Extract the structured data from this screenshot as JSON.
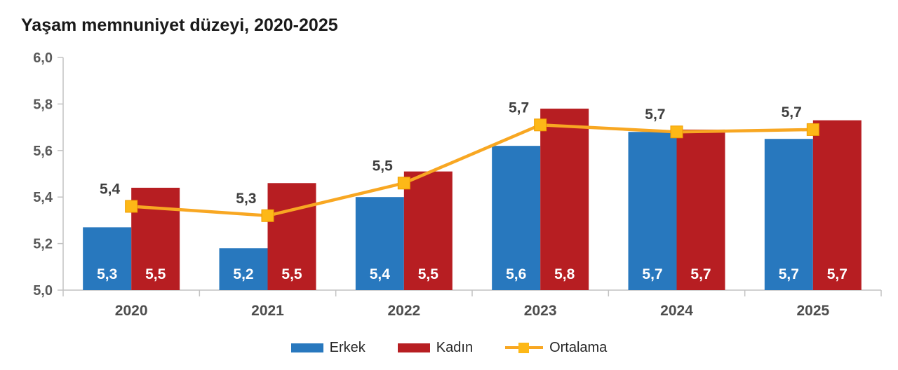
{
  "chart_data": {
    "type": "bar",
    "title": "Yaşam memnuniyet düzeyi, 2020-2025",
    "categories": [
      "2020",
      "2021",
      "2022",
      "2023",
      "2024",
      "2025"
    ],
    "series": [
      {
        "name": "Erkek",
        "type": "bar",
        "color": "#2878BE",
        "values": [
          5.3,
          5.2,
          5.4,
          5.6,
          5.7,
          5.7
        ],
        "value_labels": [
          "5,3",
          "5,2",
          "5,4",
          "5,6",
          "5,7",
          "5,7"
        ],
        "plot_values": [
          5.27,
          5.18,
          5.4,
          5.62,
          5.68,
          5.65
        ]
      },
      {
        "name": "Kadın",
        "type": "bar",
        "color": "#B71E22",
        "values": [
          5.5,
          5.5,
          5.5,
          5.8,
          5.7,
          5.7
        ],
        "value_labels": [
          "5,5",
          "5,5",
          "5,5",
          "5,8",
          "5,7",
          "5,7"
        ],
        "plot_values": [
          5.44,
          5.46,
          5.51,
          5.78,
          5.69,
          5.73
        ]
      },
      {
        "name": "Ortalama",
        "type": "line",
        "color": "#F8A722",
        "marker_color": "#FDB817",
        "marker_stroke": "#EF9C00",
        "values": [
          5.4,
          5.3,
          5.5,
          5.7,
          5.7,
          5.7
        ],
        "value_labels": [
          "5,4",
          "5,3",
          "5,5",
          "5,7",
          "5,7",
          "5,7"
        ],
        "plot_values": [
          5.36,
          5.32,
          5.46,
          5.71,
          5.68,
          5.69
        ]
      }
    ],
    "xlabel": "",
    "ylabel": "",
    "ylim": [
      5.0,
      6.0
    ],
    "yticks": [
      {
        "value": 5.0,
        "label": "5,0"
      },
      {
        "value": 5.2,
        "label": "5,2"
      },
      {
        "value": 5.4,
        "label": "5,4"
      },
      {
        "value": 5.6,
        "label": "5,6"
      },
      {
        "value": 5.8,
        "label": "5,8"
      },
      {
        "value": 6.0,
        "label": "6,0"
      }
    ],
    "grid": false,
    "legend_position": "bottom",
    "legend": [
      "Erkek",
      "Kadın",
      "Ortalama"
    ]
  },
  "colors": {
    "title": "#1A1A1A",
    "axis": "#C2C2C2",
    "y_tick_label": "#595959",
    "x_tick_label": "#4D4D4D",
    "bar_label": "#FFFFFF",
    "point_label": "#3F3F3F",
    "legend_text": "#262626"
  }
}
